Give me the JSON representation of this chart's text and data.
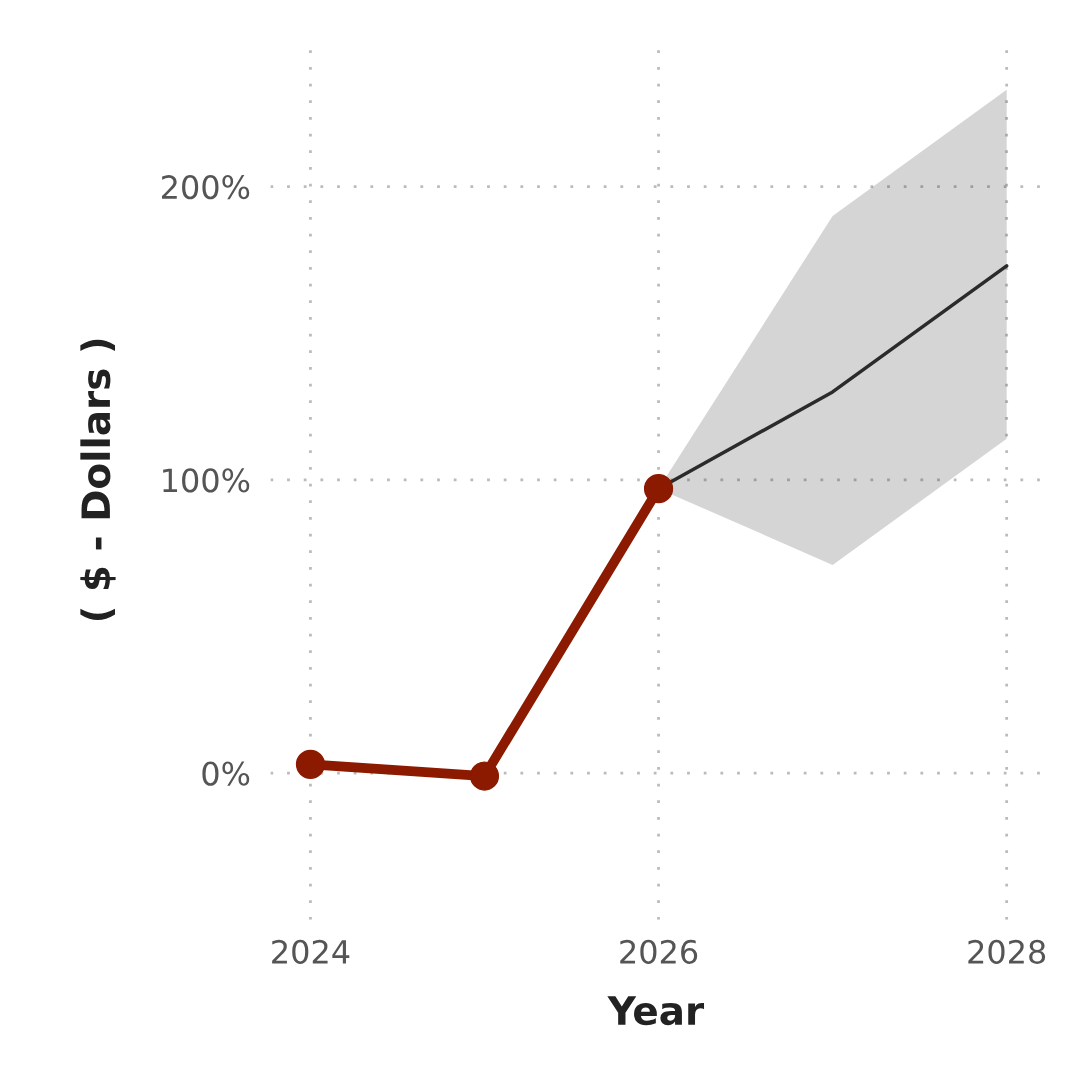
{
  "chart_data": {
    "type": "line",
    "xlabel": "Year",
    "ylabel": "( $ - Dollars )",
    "xlim": [
      2023.77,
      2028.2
    ],
    "ylim": [
      -50,
      250
    ],
    "xticks": [
      2024,
      2026,
      2028
    ],
    "yticks": [
      {
        "value": 0,
        "label": "0%"
      },
      {
        "value": 100,
        "label": "100%"
      },
      {
        "value": 200,
        "label": "200%"
      }
    ],
    "grid": true,
    "line_style": "solid",
    "series": [
      {
        "x": [
          2024,
          2025,
          2026
        ],
        "values": [
          3,
          -1,
          97
        ],
        "color": "#8b1a00",
        "marker": "circle"
      },
      {
        "x": [
          2026,
          2027,
          2028
        ],
        "values": [
          97,
          130,
          173
        ],
        "lower": [
          97,
          71,
          114
        ],
        "upper": [
          97,
          190,
          233
        ],
        "color": "#2b2b2b",
        "marker": "none"
      }
    ]
  }
}
